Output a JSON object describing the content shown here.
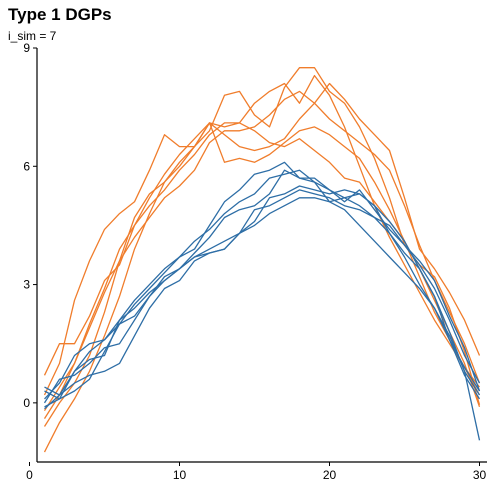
{
  "chart_data": {
    "type": "line",
    "title": "Type 1 DGPs",
    "subtitle": "i_sim = 7",
    "xlabel": "",
    "ylabel": "",
    "xlim": [
      0.5,
      30.5
    ],
    "ylim": [
      -1.5,
      9.0
    ],
    "x_ticks": [
      0,
      10,
      20,
      30
    ],
    "y_ticks": [
      0,
      3,
      6,
      9
    ],
    "grid": false,
    "legend": "none",
    "colors": {
      "orange": "#f07d2c",
      "blue": "#2e6ea6"
    },
    "x": [
      1,
      2,
      3,
      4,
      5,
      6,
      7,
      8,
      9,
      10,
      11,
      12,
      13,
      14,
      15,
      16,
      17,
      18,
      19,
      20,
      21,
      22,
      23,
      24,
      25,
      26,
      27,
      28,
      29,
      30
    ],
    "series": [
      {
        "color": "orange",
        "values": [
          -1.25,
          -0.5,
          0.1,
          0.8,
          1.7,
          2.7,
          3.9,
          4.8,
          5.6,
          6.1,
          6.5,
          6.9,
          7.8,
          7.9,
          7.3,
          7.0,
          8.0,
          8.5,
          8.5,
          7.9,
          7.6,
          7.0,
          6.2,
          5.2,
          4.0,
          3.5,
          3.2,
          2.4,
          1.3,
          -0.05
        ]
      },
      {
        "color": "orange",
        "values": [
          -0.6,
          0.0,
          0.5,
          1.2,
          2.3,
          3.6,
          4.7,
          5.3,
          5.6,
          6.0,
          6.5,
          7.1,
          7.0,
          7.1,
          7.6,
          7.9,
          8.1,
          7.6,
          8.3,
          7.8,
          7.0,
          6.0,
          5.0,
          4.2,
          3.5,
          2.8,
          2.1,
          1.5,
          0.9,
          0.4
        ]
      },
      {
        "color": "orange",
        "values": [
          -0.2,
          0.4,
          1.0,
          1.9,
          2.8,
          3.6,
          4.2,
          4.7,
          5.2,
          5.5,
          5.9,
          6.6,
          6.9,
          6.9,
          7.0,
          7.3,
          7.7,
          7.9,
          7.6,
          7.2,
          6.9,
          6.6,
          6.3,
          5.9,
          5.0,
          4.0,
          3.1,
          2.3,
          1.5,
          0.5
        ]
      },
      {
        "color": "orange",
        "values": [
          0.7,
          1.5,
          1.5,
          2.2,
          3.1,
          3.5,
          4.5,
          5.0,
          5.4,
          5.9,
          6.3,
          6.8,
          7.1,
          7.1,
          6.9,
          6.6,
          6.5,
          6.7,
          6.4,
          6.1,
          5.7,
          5.6,
          5.1,
          4.6,
          4.1,
          3.4,
          2.6,
          1.8,
          1.0,
          -0.1
        ]
      },
      {
        "color": "orange",
        "values": [
          -0.4,
          0.2,
          1.0,
          2.0,
          2.9,
          3.9,
          4.5,
          5.2,
          5.8,
          6.3,
          6.7,
          7.1,
          6.1,
          6.2,
          6.1,
          6.3,
          6.6,
          6.9,
          7.0,
          6.8,
          6.5,
          6.2,
          5.6,
          4.9,
          4.1,
          3.2,
          2.3,
          1.6,
          0.9,
          0.2
        ]
      },
      {
        "color": "orange",
        "values": [
          0.2,
          1.0,
          2.6,
          3.6,
          4.4,
          4.8,
          5.1,
          5.9,
          6.8,
          6.5,
          6.5,
          7.1,
          6.8,
          6.5,
          6.4,
          6.5,
          6.7,
          7.2,
          7.6,
          8.1,
          7.7,
          7.2,
          6.8,
          6.4,
          5.2,
          3.9,
          3.4,
          2.8,
          2.1,
          1.2
        ]
      },
      {
        "color": "blue",
        "values": [
          0.3,
          0.1,
          0.3,
          0.6,
          1.3,
          2.0,
          2.2,
          2.7,
          3.1,
          3.4,
          3.7,
          3.9,
          4.1,
          4.3,
          4.5,
          4.8,
          5.0,
          5.2,
          5.2,
          5.1,
          5.2,
          5.0,
          4.7,
          4.5,
          4.0,
          3.6,
          3.1,
          2.2,
          1.4,
          0.3
        ]
      },
      {
        "color": "blue",
        "values": [
          -0.15,
          0.2,
          0.5,
          0.7,
          0.8,
          1.0,
          1.7,
          2.4,
          2.9,
          3.1,
          3.6,
          3.8,
          3.9,
          4.3,
          4.6,
          5.2,
          5.3,
          5.5,
          5.4,
          5.3,
          5.4,
          5.3,
          5.0,
          4.6,
          4.1,
          3.4,
          2.7,
          1.8,
          0.8,
          -0.95
        ]
      },
      {
        "color": "blue",
        "values": [
          0.0,
          0.6,
          0.7,
          1.0,
          1.4,
          1.5,
          2.1,
          2.7,
          3.2,
          3.4,
          3.7,
          3.8,
          3.9,
          4.3,
          4.9,
          5.0,
          5.2,
          5.4,
          5.3,
          5.2,
          5.0,
          4.9,
          4.7,
          4.3,
          3.7,
          3.0,
          2.4,
          1.6,
          0.7,
          0.1
        ]
      },
      {
        "color": "blue",
        "values": [
          0.4,
          0.2,
          0.8,
          1.3,
          1.6,
          2.0,
          2.5,
          2.9,
          3.3,
          3.7,
          4.1,
          4.4,
          4.8,
          5.1,
          5.3,
          5.7,
          5.8,
          5.9,
          5.6,
          5.1,
          4.9,
          4.5,
          4.1,
          3.7,
          3.3,
          2.9,
          2.4,
          1.7,
          0.8,
          0.2
        ]
      },
      {
        "color": "blue",
        "values": [
          -0.1,
          0.1,
          0.8,
          1.1,
          1.2,
          2.1,
          2.6,
          3.0,
          3.4,
          3.7,
          3.9,
          4.5,
          5.1,
          5.4,
          5.8,
          5.9,
          6.1,
          5.7,
          5.7,
          5.4,
          5.2,
          5.3,
          5.0,
          4.3,
          3.8,
          3.4,
          2.7,
          1.6,
          0.9,
          0.3
        ]
      },
      {
        "color": "blue",
        "values": [
          0.1,
          0.5,
          1.2,
          1.5,
          1.6,
          2.1,
          2.4,
          2.8,
          3.1,
          3.4,
          3.8,
          4.2,
          4.7,
          4.9,
          5.0,
          5.3,
          5.9,
          5.7,
          5.6,
          5.4,
          5.1,
          5.4,
          4.9,
          4.4,
          4.0,
          3.5,
          2.9,
          2.1,
          1.2,
          0.5
        ]
      }
    ]
  }
}
